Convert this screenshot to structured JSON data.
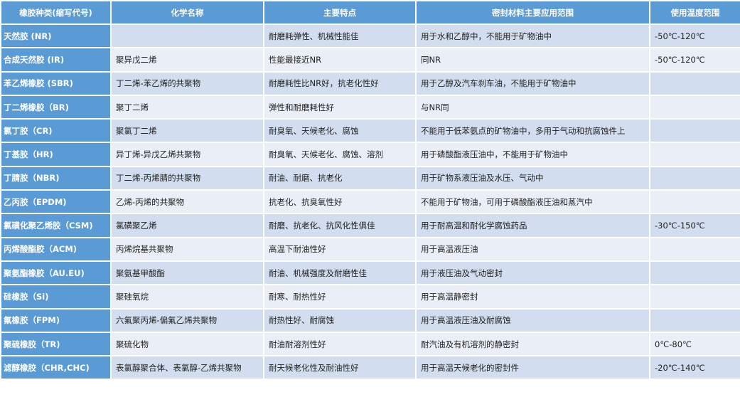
{
  "colors": {
    "header": "#5b9bd5",
    "row_dark": "#d2deef",
    "row_light": "#eaeff7"
  },
  "headers": [
    "橡胶种类(缩写代号)",
    "化学名称",
    "主要特点",
    "密封材料主要应用范围",
    "使用温度范围"
  ],
  "rows": [
    [
      "天然胶 (NR)",
      "",
      "耐磨耗弹性、机械性能佳",
      "用于水和乙醇中，不能用于矿物油中",
      "-50℃-120℃"
    ],
    [
      "合成天然胶 (IR)",
      "聚异戊二烯",
      "性能最接近NR",
      "同NR",
      "-50℃-120℃"
    ],
    [
      "苯乙烯橡胶 (SBR)",
      "丁二烯-苯乙烯的共聚物",
      "耐磨耗性比NR好，抗老化性好",
      "用于乙醇及汽车刹车油，不能用于矿物油中",
      ""
    ],
    [
      "丁二烯橡胶（BR)",
      "聚丁二烯",
      "弹性和耐磨耗性好",
      "与NR同",
      ""
    ],
    [
      "氯丁胶（CR)",
      "聚氯丁二烯",
      "耐臭氧、天候老化、腐蚀",
      "不能用于低苯氨点的矿物油中，多用于气动和抗腐蚀件上",
      ""
    ],
    [
      "丁基胶（HR)",
      "异丁烯-异戊乙烯共聚物",
      "耐臭氧、天候老化、腐蚀、溶剂",
      "用于磷酸酯液压油中，不能用于矿物油中",
      ""
    ],
    [
      "丁腈胶（NBR)",
      "丁二烯-丙烯腈的共聚物",
      "耐油、耐磨、抗老化",
      "用于矿物系液压油及水压、气动中",
      ""
    ],
    [
      "乙丙胶（EPDM)",
      "乙烯-丙烯的共聚物",
      "抗老化、抗臭氧性好",
      "不能用于矿物油，可用于磷酸酯液压油和蒸汽中",
      ""
    ],
    [
      "氯磺化聚乙烯胶（CSM)",
      "氯磺聚乙烯",
      "耐磨、抗老化、抗风化性俱佳",
      "用于耐高温和耐化学腐蚀药品",
      "-30℃-150℃"
    ],
    [
      "丙烯酸酯胶（ACM)",
      "丙烯烷基共聚物",
      "高温下耐油性好",
      "用于高温液压油",
      ""
    ],
    [
      "聚氨酯橡胶（AU.EU)",
      "聚氨基甲酸酯",
      "耐油、机械强度及耐磨性佳",
      "用于液压油及气动密封",
      ""
    ],
    [
      "硅橡胶（Si)",
      "聚硅氧烷",
      "耐寒、耐热性好",
      "用于高温静密封",
      ""
    ],
    [
      "氟橡胶（FPM)",
      "六氟聚丙烯-偏氟乙烯共聚物",
      "耐热性好、耐腐蚀",
      "用于高温液压油及耐腐蚀",
      ""
    ],
    [
      "聚硫橡胶（TR)",
      "聚硫化物",
      "耐油耐溶剂性好",
      "耐汽油及有机溶剂的静密封",
      "0℃-80℃"
    ],
    [
      "滤醇橡胶（CHR,CHC)",
      "表氯醇聚合体、表氯醇-乙烯共聚物",
      "耐天候老化性及耐油性好",
      "用于高温天候老化的密封件",
      "-20℃-140℃"
    ]
  ]
}
